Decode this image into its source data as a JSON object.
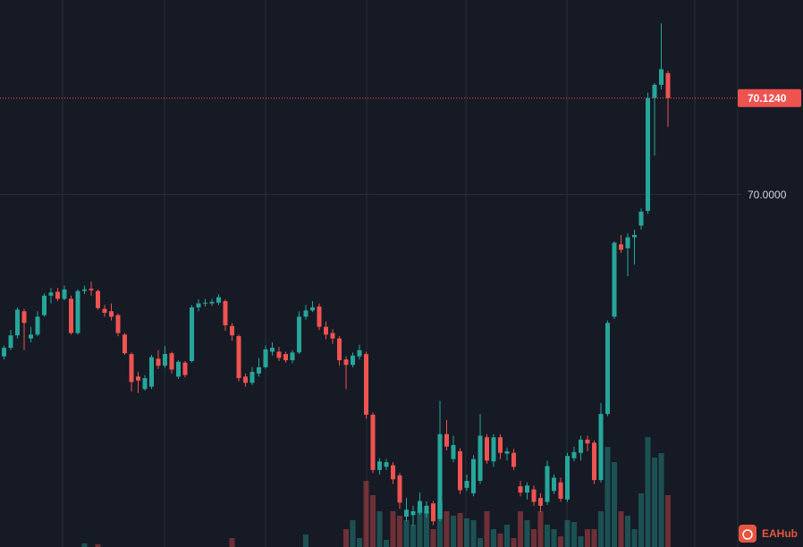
{
  "chart_data": {
    "type": "candlestick",
    "up_color": "#26a69a",
    "down_color": "#ef5350",
    "ylim": [
      69.547,
      70.25
    ],
    "yticks": [
      {
        "value": 70,
        "label": "70.0000"
      }
    ],
    "last_price": {
      "value": 70.124,
      "label": "70.1240"
    },
    "watermark": "EAHub",
    "vlim": [
      0,
      160
    ],
    "ohlc": [
      [
        69.792,
        69.806,
        69.788,
        69.803
      ],
      [
        69.803,
        69.826,
        69.8,
        69.819
      ],
      [
        69.819,
        69.855,
        69.815,
        69.852
      ],
      [
        69.85,
        69.853,
        69.8,
        69.835
      ],
      [
        69.815,
        69.83,
        69.81,
        69.82
      ],
      [
        69.82,
        69.85,
        69.818,
        69.843
      ],
      [
        69.845,
        69.873,
        69.843,
        69.87
      ],
      [
        69.87,
        69.88,
        69.86,
        69.874
      ],
      [
        69.875,
        69.88,
        69.863,
        69.866
      ],
      [
        69.866,
        69.883,
        69.864,
        69.878
      ],
      [
        69.866,
        69.87,
        69.82,
        69.822
      ],
      [
        69.822,
        69.878,
        69.82,
        69.876
      ],
      [
        69.876,
        69.883,
        69.872,
        69.878
      ],
      [
        69.879,
        69.888,
        69.87,
        69.877
      ],
      [
        69.876,
        69.878,
        69.852,
        69.854
      ],
      [
        69.853,
        69.858,
        69.843,
        69.848
      ],
      [
        69.85,
        69.86,
        69.838,
        69.843
      ],
      [
        69.845,
        69.847,
        69.818,
        69.822
      ],
      [
        69.82,
        69.822,
        69.794,
        69.796
      ],
      [
        69.795,
        69.797,
        69.747,
        69.759
      ],
      [
        69.766,
        69.772,
        69.745,
        69.761
      ],
      [
        69.75,
        69.768,
        69.748,
        69.764
      ],
      [
        69.753,
        69.794,
        69.75,
        69.791
      ],
      [
        69.789,
        69.8,
        69.776,
        69.78
      ],
      [
        69.78,
        69.805,
        69.777,
        69.795
      ],
      [
        69.796,
        69.798,
        69.77,
        69.775
      ],
      [
        69.766,
        69.787,
        69.763,
        69.785
      ],
      [
        69.784,
        69.786,
        69.765,
        69.768
      ],
      [
        69.786,
        69.858,
        69.784,
        69.855
      ],
      [
        69.855,
        69.865,
        69.85,
        69.86
      ],
      [
        69.86,
        69.866,
        69.856,
        69.861
      ],
      [
        69.86,
        69.866,
        69.857,
        69.862
      ],
      [
        69.861,
        69.872,
        69.858,
        69.868
      ],
      [
        69.863,
        69.865,
        69.825,
        69.832
      ],
      [
        69.831,
        69.835,
        69.812,
        69.819
      ],
      [
        69.818,
        69.82,
        69.76,
        69.764
      ],
      [
        69.766,
        69.77,
        69.753,
        69.758
      ],
      [
        69.758,
        69.778,
        69.755,
        69.772
      ],
      [
        69.77,
        69.79,
        69.766,
        69.778
      ],
      [
        69.778,
        69.806,
        69.776,
        69.801
      ],
      [
        69.798,
        69.81,
        69.793,
        69.803
      ],
      [
        69.798,
        69.804,
        69.786,
        69.79
      ],
      [
        69.795,
        69.798,
        69.784,
        69.787
      ],
      [
        69.787,
        69.8,
        69.783,
        69.797
      ],
      [
        69.797,
        69.85,
        69.795,
        69.843
      ],
      [
        69.843,
        69.858,
        69.839,
        69.851
      ],
      [
        69.851,
        69.863,
        69.849,
        69.855
      ],
      [
        69.856,
        69.86,
        69.826,
        69.83
      ],
      [
        69.83,
        69.837,
        69.814,
        69.82
      ],
      [
        69.822,
        69.827,
        69.808,
        69.815
      ],
      [
        69.815,
        69.818,
        69.78,
        69.787
      ],
      [
        69.788,
        69.792,
        69.75,
        69.781
      ],
      [
        69.781,
        69.797,
        69.778,
        69.793
      ],
      [
        69.792,
        69.807,
        69.788,
        69.8
      ],
      [
        69.795,
        69.798,
        69.712,
        69.717
      ],
      [
        69.717,
        69.72,
        69.642,
        69.646
      ],
      [
        69.646,
        69.661,
        69.64,
        69.657
      ],
      [
        69.65,
        69.66,
        69.646,
        69.656
      ],
      [
        69.652,
        69.656,
        69.628,
        69.634
      ],
      [
        69.639,
        69.642,
        69.596,
        69.604
      ],
      [
        69.586,
        69.61,
        69.58,
        69.595
      ],
      [
        69.588,
        69.6,
        69.574,
        69.593
      ],
      [
        69.591,
        69.617,
        69.588,
        69.606
      ],
      [
        69.59,
        69.606,
        69.585,
        69.6
      ],
      [
        69.603,
        69.606,
        69.575,
        69.58
      ],
      [
        69.583,
        69.735,
        69.58,
        69.692
      ],
      [
        69.692,
        69.71,
        69.671,
        69.676
      ],
      [
        69.66,
        69.69,
        69.656,
        69.678
      ],
      [
        69.67,
        69.674,
        69.615,
        69.62
      ],
      [
        69.623,
        69.64,
        69.619,
        69.632
      ],
      [
        69.616,
        69.665,
        69.612,
        69.66
      ],
      [
        69.632,
        69.718,
        69.628,
        69.69
      ],
      [
        69.688,
        69.692,
        69.654,
        69.658
      ],
      [
        69.657,
        69.692,
        69.65,
        69.688
      ],
      [
        69.688,
        69.692,
        69.66,
        69.668
      ],
      [
        69.667,
        69.675,
        69.658,
        69.67
      ],
      [
        69.668,
        69.673,
        69.646,
        69.65
      ],
      [
        69.625,
        69.632,
        69.612,
        69.617
      ],
      [
        69.617,
        69.63,
        69.608,
        69.626
      ],
      [
        69.621,
        69.626,
        69.6,
        69.605
      ],
      [
        69.61,
        69.616,
        69.592,
        69.6
      ],
      [
        69.605,
        69.658,
        69.601,
        69.651
      ],
      [
        69.619,
        69.64,
        69.615,
        69.636
      ],
      [
        69.63,
        69.636,
        69.605,
        69.609
      ],
      [
        69.608,
        69.668,
        69.605,
        69.664
      ],
      [
        69.661,
        69.676,
        69.657,
        69.669
      ],
      [
        69.668,
        69.69,
        69.658,
        69.685
      ],
      [
        69.685,
        69.69,
        69.67,
        69.68
      ],
      [
        69.681,
        69.684,
        69.628,
        69.633
      ],
      [
        69.633,
        69.732,
        69.63,
        69.718
      ],
      [
        69.718,
        69.838,
        69.715,
        69.835
      ],
      [
        69.843,
        69.94,
        69.84,
        69.938
      ],
      [
        69.936,
        69.948,
        69.925,
        69.929
      ],
      [
        69.931,
        69.95,
        69.895,
        69.945
      ],
      [
        69.945,
        69.955,
        69.91,
        69.948
      ],
      [
        69.96,
        69.982,
        69.955,
        69.978
      ],
      [
        69.979,
        70.131,
        69.975,
        70.124
      ],
      [
        70.124,
        70.143,
        70.05,
        70.141
      ],
      [
        70.141,
        70.22,
        70.135,
        70.161
      ],
      [
        70.156,
        70.159,
        70.087,
        70.124
      ]
    ],
    "volume": [
      null,
      null,
      null,
      null,
      null,
      null,
      null,
      null,
      null,
      null,
      null,
      null,
      4,
      null,
      3,
      null,
      null,
      null,
      null,
      null,
      null,
      null,
      null,
      null,
      null,
      null,
      null,
      null,
      null,
      null,
      null,
      null,
      null,
      null,
      10,
      null,
      null,
      null,
      null,
      null,
      null,
      null,
      null,
      null,
      null,
      14,
      null,
      null,
      null,
      null,
      null,
      20,
      30,
      10,
      74,
      58,
      40,
      8,
      40,
      35,
      30,
      25,
      45,
      40,
      20,
      50,
      40,
      35,
      38,
      32,
      30,
      10,
      40,
      20,
      15,
      25,
      10,
      40,
      30,
      20,
      40,
      25,
      20,
      12,
      30,
      28,
      12,
      20,
      20,
      40,
      112,
      95,
      40,
      35,
      20,
      60,
      123,
      100,
      105,
      58
    ]
  }
}
